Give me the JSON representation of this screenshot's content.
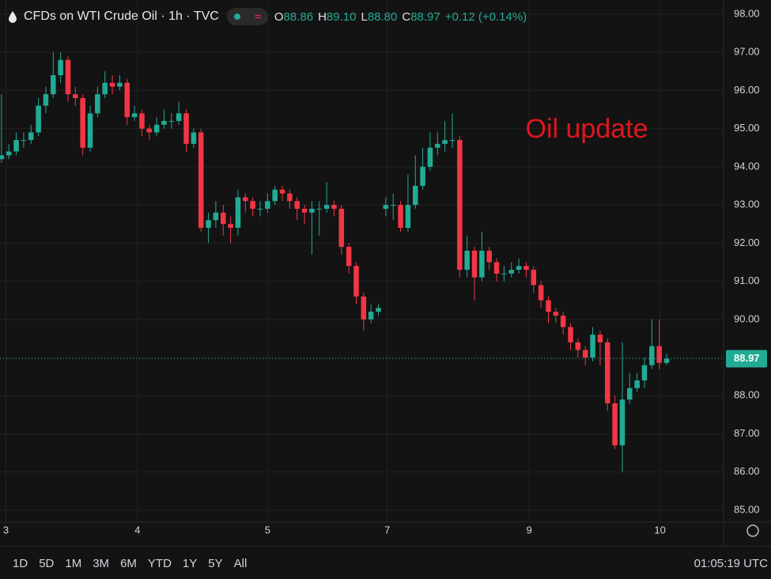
{
  "chart_data": {
    "type": "candlestick",
    "title": "CFDs on WTI Crude Oil · 1h · TVC",
    "header_ohlc": [
      {
        "label": "O",
        "value": "88.86"
      },
      {
        "label": "H",
        "value": "89.10"
      },
      {
        "label": "L",
        "value": "88.80"
      },
      {
        "label": "C",
        "value": "88.97"
      }
    ],
    "change": "+0.12 (+0.14%)",
    "annotation": "Oil update",
    "up_color": "#22ab94",
    "down_color": "#f23645",
    "open": [
      94.2,
      94.3,
      94.4,
      94.7,
      94.7,
      94.9,
      95.6,
      95.9,
      96.4,
      96.8,
      95.9,
      95.8,
      94.5,
      95.4,
      95.9,
      96.2,
      96.1,
      96.2,
      95.3,
      95.4,
      95.0,
      94.9,
      95.1,
      95.2,
      95.2,
      95.4,
      94.6,
      94.9,
      92.4,
      92.6,
      92.8,
      92.5,
      92.4,
      93.2,
      93.1,
      92.9,
      92.9,
      93.1,
      93.4,
      93.3,
      93.1,
      92.9,
      92.8,
      92.9,
      92.9,
      93.0,
      92.9,
      91.9,
      91.4,
      90.6,
      90.0,
      90.2,
      92.9,
      93.0,
      93.0,
      92.4,
      93.0,
      93.5,
      94.0,
      94.5,
      94.6,
      94.7,
      94.7,
      91.3,
      91.8,
      91.1,
      91.8,
      91.5,
      91.2,
      91.2,
      91.3,
      91.4,
      91.3,
      90.9,
      90.5,
      90.2,
      90.1,
      89.8,
      89.4,
      89.2,
      89.0,
      89.6,
      89.4,
      87.8,
      86.7,
      87.9,
      88.2,
      88.4,
      88.8,
      89.3,
      88.86
    ],
    "high": [
      95.9,
      94.6,
      94.9,
      94.9,
      95.1,
      95.8,
      96.1,
      97.0,
      97.0,
      96.9,
      96.1,
      95.9,
      95.6,
      96.1,
      96.5,
      96.4,
      96.4,
      96.3,
      95.6,
      95.5,
      95.1,
      95.3,
      95.5,
      95.4,
      95.7,
      95.5,
      95.0,
      95.0,
      92.8,
      93.1,
      93.0,
      92.7,
      93.4,
      93.3,
      93.2,
      93.1,
      93.3,
      93.5,
      93.5,
      93.4,
      93.2,
      93.0,
      93.1,
      93.1,
      93.6,
      93.1,
      93.0,
      92.0,
      91.5,
      90.7,
      90.4,
      90.4,
      93.2,
      93.3,
      93.1,
      93.8,
      94.3,
      94.5,
      94.9,
      94.9,
      95.2,
      95.4,
      94.8,
      92.2,
      91.9,
      92.3,
      91.9,
      91.6,
      91.4,
      91.5,
      91.6,
      91.5,
      91.4,
      91.0,
      90.6,
      90.3,
      90.2,
      89.9,
      89.5,
      89.3,
      89.8,
      89.7,
      89.5,
      88.0,
      89.4,
      88.6,
      88.6,
      89.0,
      90.0,
      90.0,
      89.1
    ],
    "low": [
      94.1,
      94.2,
      94.3,
      94.5,
      94.6,
      94.8,
      95.4,
      95.8,
      96.2,
      95.7,
      95.6,
      94.3,
      94.4,
      95.3,
      95.8,
      95.9,
      96.0,
      95.1,
      95.2,
      94.8,
      94.7,
      94.8,
      95.0,
      95.0,
      95.1,
      94.4,
      94.5,
      92.3,
      92.0,
      92.4,
      92.2,
      92.0,
      92.2,
      92.8,
      92.7,
      92.7,
      92.8,
      93.0,
      93.1,
      92.9,
      92.6,
      92.5,
      91.7,
      92.2,
      92.8,
      92.7,
      91.7,
      91.2,
      90.4,
      89.7,
      89.9,
      90.1,
      92.7,
      92.6,
      92.3,
      92.3,
      92.9,
      93.4,
      93.9,
      94.3,
      94.4,
      94.5,
      91.1,
      91.1,
      90.5,
      91.0,
      91.3,
      91.0,
      91.0,
      91.1,
      91.2,
      91.1,
      90.7,
      90.3,
      89.9,
      89.9,
      89.6,
      89.2,
      89.0,
      88.8,
      88.9,
      88.8,
      87.6,
      86.6,
      86.0,
      87.8,
      88.1,
      88.2,
      88.7,
      88.7,
      88.8
    ],
    "close": [
      94.3,
      94.4,
      94.7,
      94.7,
      94.9,
      95.6,
      95.9,
      96.4,
      96.8,
      95.9,
      95.8,
      94.5,
      95.4,
      95.9,
      96.2,
      96.1,
      96.2,
      95.3,
      95.4,
      95.0,
      94.9,
      95.1,
      95.2,
      95.2,
      95.4,
      94.6,
      94.9,
      92.4,
      92.6,
      92.8,
      92.5,
      92.4,
      93.2,
      93.1,
      92.9,
      92.9,
      93.1,
      93.4,
      93.3,
      93.1,
      92.9,
      92.8,
      92.9,
      92.9,
      93.0,
      92.9,
      91.9,
      91.4,
      90.6,
      90.0,
      90.2,
      90.3,
      93.0,
      93.0,
      92.4,
      93.0,
      93.5,
      94.0,
      94.5,
      94.6,
      94.7,
      94.7,
      91.3,
      91.8,
      91.1,
      91.8,
      91.5,
      91.2,
      91.2,
      91.3,
      91.4,
      91.3,
      90.9,
      90.5,
      90.2,
      90.1,
      89.8,
      89.4,
      89.2,
      89.0,
      89.6,
      89.4,
      87.8,
      86.7,
      87.9,
      88.2,
      88.4,
      88.8,
      89.3,
      88.86,
      88.97
    ],
    "xlim": [
      -0.2,
      97.7
    ],
    "xticks": [
      {
        "value": 0.6,
        "label": "3"
      },
      {
        "value": 18.4,
        "label": "4"
      },
      {
        "value": 36,
        "label": "5"
      },
      {
        "value": 52.2,
        "label": "7"
      },
      {
        "value": 71.4,
        "label": "9"
      },
      {
        "value": 89.1,
        "label": "10"
      }
    ],
    "ylim": [
      84.69,
      98.37
    ],
    "yticks": [
      {
        "value": 85,
        "label": "85.00"
      },
      {
        "value": 86,
        "label": "86.00"
      },
      {
        "value": 87,
        "label": "87.00"
      },
      {
        "value": 88,
        "label": "88.00"
      },
      {
        "value": 89,
        "label": "89.00"
      },
      {
        "value": 90,
        "label": "90.00"
      },
      {
        "value": 91,
        "label": "91.00"
      },
      {
        "value": 92,
        "label": "92.00"
      },
      {
        "value": 93,
        "label": "93.00"
      },
      {
        "value": 94,
        "label": "94.00"
      },
      {
        "value": 95,
        "label": "95.00"
      },
      {
        "value": 96,
        "label": "96.00"
      },
      {
        "value": 97,
        "label": "97.00"
      },
      {
        "value": 98,
        "label": "98.00"
      }
    ],
    "last_price": {
      "value": 88.97,
      "label": "88.97"
    },
    "grid": true,
    "ranges": [
      "1D",
      "5D",
      "1M",
      "3M",
      "6M",
      "YTD",
      "1Y",
      "5Y",
      "All"
    ],
    "clock": "01:05:19 UTC"
  }
}
